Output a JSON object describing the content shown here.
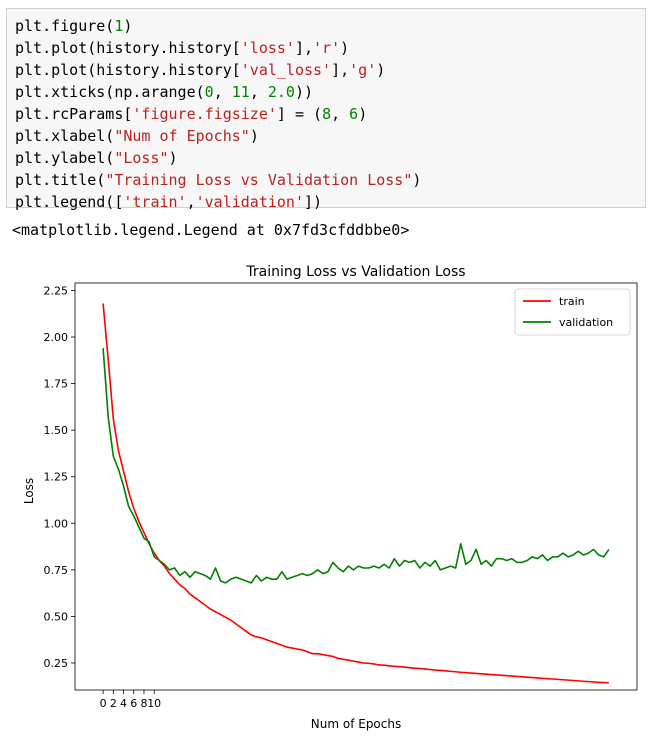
{
  "code_cell": {
    "lines": [
      [
        {
          "t": "plt.figure("
        },
        {
          "t": "1",
          "c": "num"
        },
        {
          "t": ")"
        }
      ],
      [
        {
          "t": "plt.plot(history.history["
        },
        {
          "t": "'loss'",
          "c": "str"
        },
        {
          "t": "],"
        },
        {
          "t": "'r'",
          "c": "str"
        },
        {
          "t": ")"
        }
      ],
      [
        {
          "t": "plt.plot(history.history["
        },
        {
          "t": "'val_loss'",
          "c": "str"
        },
        {
          "t": "],"
        },
        {
          "t": "'g'",
          "c": "str"
        },
        {
          "t": ")"
        }
      ],
      [
        {
          "t": "plt.xticks(np.arange("
        },
        {
          "t": "0",
          "c": "num"
        },
        {
          "t": ", "
        },
        {
          "t": "11",
          "c": "num"
        },
        {
          "t": ", "
        },
        {
          "t": "2.0",
          "c": "num"
        },
        {
          "t": "))"
        }
      ],
      [
        {
          "t": "plt.rcParams["
        },
        {
          "t": "'figure.figsize'",
          "c": "str"
        },
        {
          "t": "] = ("
        },
        {
          "t": "8",
          "c": "num"
        },
        {
          "t": ", "
        },
        {
          "t": "6",
          "c": "num"
        },
        {
          "t": ")"
        }
      ],
      [
        {
          "t": "plt.xlabel("
        },
        {
          "t": "\"Num of Epochs\"",
          "c": "str"
        },
        {
          "t": ")"
        }
      ],
      [
        {
          "t": "plt.ylabel("
        },
        {
          "t": "\"Loss\"",
          "c": "str"
        },
        {
          "t": ")"
        }
      ],
      [
        {
          "t": "plt.title("
        },
        {
          "t": "\"Training Loss vs Validation Loss\"",
          "c": "str"
        },
        {
          "t": ")"
        }
      ],
      [
        {
          "t": "plt.legend(["
        },
        {
          "t": "'train'",
          "c": "str"
        },
        {
          "t": ","
        },
        {
          "t": "'validation'",
          "c": "str"
        },
        {
          "t": "])"
        }
      ]
    ]
  },
  "output_text": "<matplotlib.legend.Legend at 0x7fd3cfddbbe0>",
  "chart_data": {
    "type": "line",
    "title": "Training Loss vs Validation Loss",
    "xlabel": "Num of Epochs",
    "ylabel": "Loss",
    "x_ticks": [
      0,
      2,
      4,
      6,
      8,
      10
    ],
    "y_ticks": [
      0.25,
      0.5,
      0.75,
      1.0,
      1.25,
      1.5,
      1.75,
      2.0,
      2.25
    ],
    "y_tick_labels": [
      "0.25",
      "0.50",
      "0.75",
      "1.00",
      "1.25",
      "1.50",
      "1.75",
      "2.00",
      "2.25"
    ],
    "xlim": [
      -5.5,
      104.5
    ],
    "ylim": [
      0.105,
      2.29
    ],
    "grid": false,
    "legend_position": "upper right",
    "series": [
      {
        "name": "train",
        "color": "#ff0000",
        "values": [
          2.18,
          1.88,
          1.56,
          1.39,
          1.28,
          1.17,
          1.08,
          1.01,
          0.95,
          0.89,
          0.84,
          0.8,
          0.77,
          0.73,
          0.7,
          0.67,
          0.65,
          0.62,
          0.6,
          0.58,
          0.56,
          0.54,
          0.525,
          0.51,
          0.495,
          0.48,
          0.46,
          0.44,
          0.42,
          0.4,
          0.39,
          0.385,
          0.375,
          0.365,
          0.355,
          0.345,
          0.335,
          0.33,
          0.325,
          0.32,
          0.31,
          0.3,
          0.3,
          0.295,
          0.29,
          0.285,
          0.275,
          0.27,
          0.265,
          0.26,
          0.255,
          0.25,
          0.248,
          0.245,
          0.24,
          0.238,
          0.235,
          0.232,
          0.23,
          0.228,
          0.225,
          0.222,
          0.22,
          0.218,
          0.215,
          0.212,
          0.21,
          0.208,
          0.205,
          0.203,
          0.2,
          0.198,
          0.196,
          0.194,
          0.192,
          0.19,
          0.188,
          0.186,
          0.184,
          0.182,
          0.18,
          0.178,
          0.176,
          0.174,
          0.172,
          0.17,
          0.168,
          0.166,
          0.164,
          0.162,
          0.16,
          0.158,
          0.156,
          0.154,
          0.152,
          0.15,
          0.148,
          0.146,
          0.145,
          0.144
        ]
      },
      {
        "name": "validation",
        "color": "#008000",
        "values": [
          1.94,
          1.57,
          1.36,
          1.29,
          1.2,
          1.09,
          1.04,
          0.98,
          0.92,
          0.9,
          0.82,
          0.8,
          0.78,
          0.75,
          0.76,
          0.72,
          0.74,
          0.71,
          0.74,
          0.73,
          0.72,
          0.7,
          0.76,
          0.69,
          0.68,
          0.7,
          0.71,
          0.7,
          0.69,
          0.68,
          0.72,
          0.69,
          0.71,
          0.7,
          0.7,
          0.74,
          0.7,
          0.71,
          0.72,
          0.73,
          0.72,
          0.73,
          0.75,
          0.73,
          0.74,
          0.79,
          0.76,
          0.74,
          0.77,
          0.75,
          0.77,
          0.76,
          0.76,
          0.77,
          0.76,
          0.78,
          0.76,
          0.81,
          0.77,
          0.8,
          0.79,
          0.8,
          0.76,
          0.79,
          0.77,
          0.8,
          0.75,
          0.76,
          0.77,
          0.76,
          0.89,
          0.78,
          0.8,
          0.86,
          0.78,
          0.8,
          0.77,
          0.81,
          0.81,
          0.8,
          0.81,
          0.79,
          0.79,
          0.8,
          0.82,
          0.81,
          0.83,
          0.8,
          0.82,
          0.82,
          0.84,
          0.82,
          0.83,
          0.85,
          0.83,
          0.84,
          0.86,
          0.83,
          0.82,
          0.86
        ]
      }
    ]
  }
}
